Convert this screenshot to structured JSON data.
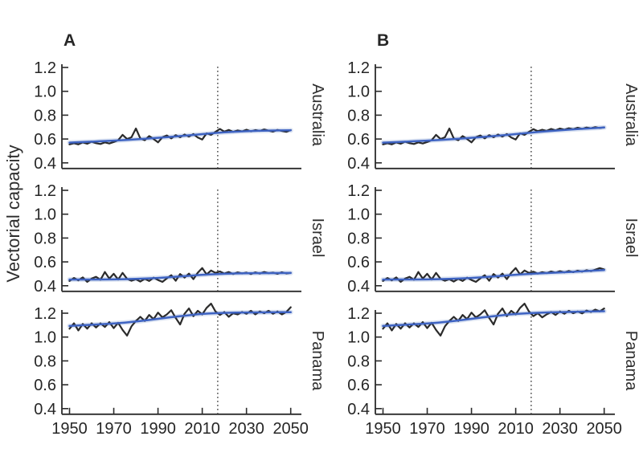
{
  "figure": {
    "background": "#ffffff",
    "colors": {
      "observed_series": "#2b2b2b",
      "trend_line": "#3e63c2",
      "trend_band": "#aabddf",
      "dashed_divider": "#3d3d3d",
      "axis": "#2b2b2b",
      "text": "#262626"
    }
  },
  "chart_data": {
    "type": "line",
    "title": "",
    "ylabel": "Vectorial capacity",
    "xlabel": "",
    "xlim": [
      1950,
      2050
    ],
    "ylim": [
      0.4,
      1.2
    ],
    "grid": false,
    "legend": "none",
    "x_start": 1950,
    "x_step": 2,
    "x_end": 2050,
    "xticks": [
      "1950",
      "1970",
      "1990",
      "2010",
      "2030",
      "2050"
    ],
    "xtick_years": [
      1950,
      1970,
      1990,
      2010,
      2030,
      2050
    ],
    "yticks": [
      "1.2",
      "1.0",
      "0.8",
      "0.6",
      "0.4"
    ],
    "ytick_values": [
      1.2,
      1.0,
      0.8,
      0.6,
      0.4
    ],
    "forecast_divider_year": 2017,
    "trend_years": [
      1950,
      1960,
      1970,
      1980,
      1990,
      2000,
      2010,
      2020,
      2030,
      2040,
      2050
    ],
    "columns": [
      {
        "label": "A",
        "panels": [
          {
            "country": "Australia",
            "values": [
              0.555,
              0.565,
              0.555,
              0.572,
              0.56,
              0.578,
              0.565,
              0.558,
              0.572,
              0.562,
              0.575,
              0.59,
              0.635,
              0.6,
              0.615,
              0.688,
              0.605,
              0.59,
              0.625,
              0.6,
              0.572,
              0.615,
              0.63,
              0.605,
              0.632,
              0.615,
              0.638,
              0.62,
              0.642,
              0.612,
              0.596,
              0.648,
              0.635,
              0.66,
              0.685,
              0.662,
              0.676,
              0.66,
              0.672,
              0.664,
              0.678,
              0.664,
              0.675,
              0.668,
              0.68,
              0.67,
              0.662,
              0.676,
              0.668,
              0.66,
              0.675
            ],
            "trend": [
              0.57,
              0.577,
              0.586,
              0.597,
              0.61,
              0.624,
              0.641,
              0.657,
              0.666,
              0.671,
              0.673
            ]
          },
          {
            "country": "Israel",
            "values": [
              0.44,
              0.465,
              0.445,
              0.47,
              0.432,
              0.46,
              0.475,
              0.45,
              0.515,
              0.46,
              0.5,
              0.452,
              0.508,
              0.458,
              0.442,
              0.455,
              0.435,
              0.458,
              0.44,
              0.468,
              0.448,
              0.432,
              0.462,
              0.488,
              0.442,
              0.498,
              0.468,
              0.502,
              0.455,
              0.51,
              0.548,
              0.495,
              0.528,
              0.508,
              0.52,
              0.502,
              0.515,
              0.498,
              0.512,
              0.503,
              0.51,
              0.498,
              0.512,
              0.502,
              0.515,
              0.505,
              0.51,
              0.5,
              0.513,
              0.503,
              0.508
            ],
            "trend": [
              0.452,
              0.452,
              0.453,
              0.457,
              0.465,
              0.478,
              0.492,
              0.501,
              0.505,
              0.506,
              0.507
            ]
          },
          {
            "country": "Panama",
            "values": [
              1.07,
              1.115,
              1.055,
              1.11,
              1.07,
              1.115,
              1.08,
              1.115,
              1.085,
              1.125,
              1.075,
              1.12,
              1.06,
              1.012,
              1.09,
              1.135,
              1.17,
              1.135,
              1.185,
              1.15,
              1.205,
              1.165,
              1.19,
              1.225,
              1.16,
              1.105,
              1.195,
              1.24,
              1.175,
              1.22,
              1.19,
              1.245,
              1.28,
              1.215,
              1.185,
              1.21,
              1.17,
              1.2,
              1.19,
              1.21,
              1.195,
              1.22,
              1.19,
              1.215,
              1.2,
              1.22,
              1.195,
              1.215,
              1.19,
              1.21,
              1.25
            ],
            "trend": [
              1.093,
              1.103,
              1.114,
              1.129,
              1.152,
              1.176,
              1.195,
              1.203,
              1.206,
              1.208,
              1.209
            ]
          }
        ]
      },
      {
        "label": "B",
        "panels": [
          {
            "country": "Australia",
            "values": [
              0.555,
              0.565,
              0.555,
              0.572,
              0.56,
              0.578,
              0.565,
              0.558,
              0.572,
              0.562,
              0.575,
              0.59,
              0.635,
              0.6,
              0.615,
              0.688,
              0.605,
              0.59,
              0.625,
              0.6,
              0.572,
              0.615,
              0.63,
              0.605,
              0.632,
              0.615,
              0.638,
              0.62,
              0.642,
              0.612,
              0.596,
              0.648,
              0.635,
              0.66,
              0.683,
              0.665,
              0.678,
              0.668,
              0.685,
              0.672,
              0.688,
              0.678,
              0.69,
              0.682,
              0.694,
              0.685,
              0.696,
              0.69,
              0.7,
              0.692,
              0.698
            ],
            "trend": [
              0.57,
              0.577,
              0.586,
              0.597,
              0.61,
              0.624,
              0.641,
              0.66,
              0.674,
              0.686,
              0.696
            ]
          },
          {
            "country": "Israel",
            "values": [
              0.44,
              0.465,
              0.445,
              0.47,
              0.432,
              0.46,
              0.475,
              0.45,
              0.515,
              0.46,
              0.5,
              0.452,
              0.508,
              0.458,
              0.442,
              0.455,
              0.435,
              0.458,
              0.44,
              0.468,
              0.448,
              0.432,
              0.462,
              0.488,
              0.442,
              0.498,
              0.468,
              0.502,
              0.455,
              0.51,
              0.548,
              0.495,
              0.528,
              0.508,
              0.518,
              0.502,
              0.514,
              0.506,
              0.52,
              0.51,
              0.522,
              0.512,
              0.524,
              0.514,
              0.526,
              0.518,
              0.53,
              0.522,
              0.535,
              0.548,
              0.537
            ],
            "trend": [
              0.452,
              0.452,
              0.453,
              0.457,
              0.465,
              0.478,
              0.492,
              0.503,
              0.511,
              0.521,
              0.532
            ]
          },
          {
            "country": "Panama",
            "values": [
              1.07,
              1.115,
              1.055,
              1.11,
              1.07,
              1.115,
              1.08,
              1.115,
              1.085,
              1.125,
              1.075,
              1.12,
              1.06,
              1.012,
              1.09,
              1.135,
              1.17,
              1.135,
              1.185,
              1.15,
              1.205,
              1.165,
              1.19,
              1.225,
              1.16,
              1.105,
              1.195,
              1.24,
              1.175,
              1.22,
              1.19,
              1.245,
              1.28,
              1.215,
              1.175,
              1.2,
              1.165,
              1.19,
              1.21,
              1.185,
              1.215,
              1.195,
              1.22,
              1.2,
              1.215,
              1.198,
              1.222,
              1.21,
              1.23,
              1.215,
              1.24
            ],
            "trend": [
              1.093,
              1.103,
              1.114,
              1.129,
              1.152,
              1.176,
              1.195,
              1.204,
              1.209,
              1.213,
              1.217
            ]
          }
        ]
      }
    ]
  }
}
